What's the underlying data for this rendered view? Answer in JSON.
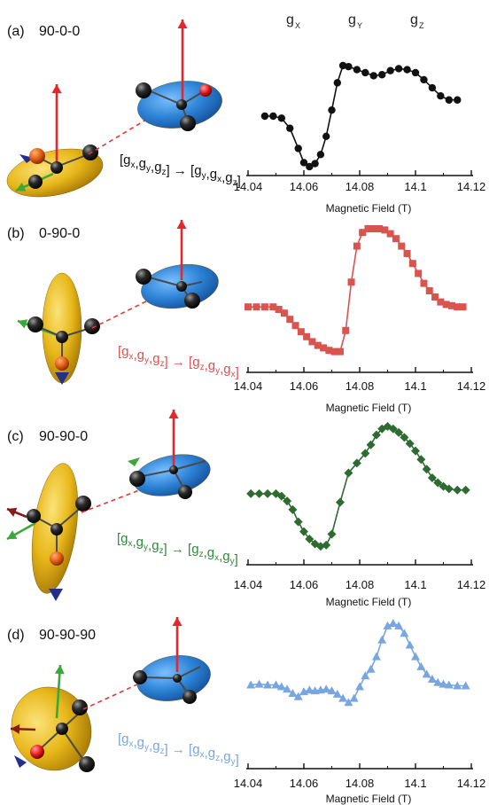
{
  "header": {
    "g_letter": "g",
    "g_subs": [
      "X",
      "Y",
      "Z"
    ]
  },
  "panels": [
    {
      "label": "(a)",
      "name": "90-0-0",
      "name_color": "#111111",
      "mapping_from": "[gx,gy,gz]",
      "mapping_to": "[gy,gx,gz]",
      "map_from_subs": [
        "x",
        "y",
        "z"
      ],
      "map_to_subs": [
        "y",
        "x",
        "z"
      ],
      "mapping_color": "#111111",
      "axis_label": "Magnetic Field (T)",
      "ticks": [
        "14.04",
        "14.06",
        "14.08",
        "14.1",
        "14.12"
      ]
    },
    {
      "label": "(b)",
      "name": "0-90-0",
      "name_color": "#d9534f",
      "mapping_from": "[gx,gy,gz]",
      "mapping_to": "[gz,gy,gx]",
      "map_from_subs": [
        "x",
        "y",
        "z"
      ],
      "map_to_subs": [
        "z",
        "y",
        "x"
      ],
      "mapping_color": "#d9534f",
      "axis_label": "Magnetic Field (T)",
      "ticks": [
        "14.04",
        "14.06",
        "14.08",
        "14.1",
        "14.12"
      ]
    },
    {
      "label": "(c)",
      "name": "90-90-0",
      "name_color": "#2e8b3a",
      "mapping_from": "[gx,gy,gz]",
      "mapping_to": "[gz,gx,gy]",
      "map_from_subs": [
        "x",
        "y",
        "z"
      ],
      "map_to_subs": [
        "z",
        "x",
        "y"
      ],
      "mapping_color": "#2e8b3a",
      "axis_label": "Magnetic Field (T)",
      "ticks": [
        "14.04",
        "14.06",
        "14.08",
        "14.1",
        "14.12"
      ]
    },
    {
      "label": "(d)",
      "name": "90-90-90",
      "name_color": "#5b8fd6",
      "mapping_from": "[gx,gy,gz]",
      "mapping_to": "[gx,gz,gy]",
      "map_from_subs": [
        "x",
        "y",
        "z"
      ],
      "map_to_subs": [
        "x",
        "z",
        "y"
      ],
      "mapping_color": "#7aa6e0",
      "axis_label": "Magnetic Field (T)",
      "ticks": [
        "14.04",
        "14.06",
        "14.08",
        "14.1",
        "14.12"
      ]
    }
  ],
  "chart_data": [
    {
      "type": "line",
      "xlabel": "Magnetic Field (T)",
      "xlim": [
        14.04,
        14.12
      ],
      "marker": "circle",
      "color": "#111111",
      "x": [
        14.046,
        14.049,
        14.052,
        14.055,
        14.058,
        14.06,
        14.062,
        14.064,
        14.066,
        14.068,
        14.07,
        14.072,
        14.074,
        14.076,
        14.079,
        14.082,
        14.085,
        14.088,
        14.091,
        14.094,
        14.097,
        14.1,
        14.103,
        14.106,
        14.109,
        14.112,
        14.115
      ],
      "y": [
        0.5,
        0.5,
        0.48,
        0.38,
        0.18,
        0.04,
        0.0,
        0.03,
        0.12,
        0.3,
        0.56,
        0.83,
        1.0,
        0.99,
        0.96,
        0.93,
        0.9,
        0.91,
        0.95,
        0.97,
        0.96,
        0.93,
        0.86,
        0.78,
        0.7,
        0.66,
        0.66
      ]
    },
    {
      "type": "line",
      "xlabel": "Magnetic Field (T)",
      "xlim": [
        14.04,
        14.12
      ],
      "marker": "square",
      "color": "#d9534f",
      "x": [
        14.04,
        14.043,
        14.046,
        14.049,
        14.051,
        14.053,
        14.055,
        14.057,
        14.059,
        14.061,
        14.063,
        14.065,
        14.067,
        14.069,
        14.071,
        14.073,
        14.075,
        14.077,
        14.079,
        14.081,
        14.083,
        14.085,
        14.087,
        14.089,
        14.091,
        14.093,
        14.095,
        14.097,
        14.099,
        14.101,
        14.103,
        14.105,
        14.107,
        14.109,
        14.111,
        14.113,
        14.115,
        14.117
      ],
      "y": [
        0.37,
        0.37,
        0.37,
        0.37,
        0.35,
        0.32,
        0.27,
        0.22,
        0.17,
        0.13,
        0.09,
        0.06,
        0.04,
        0.02,
        0.01,
        0.01,
        0.18,
        0.57,
        0.86,
        0.97,
        1.0,
        1.0,
        1.0,
        0.99,
        0.96,
        0.92,
        0.86,
        0.8,
        0.72,
        0.64,
        0.56,
        0.5,
        0.45,
        0.41,
        0.39,
        0.38,
        0.37,
        0.37
      ]
    },
    {
      "type": "line",
      "xlabel": "Magnetic Field (T)",
      "xlim": [
        14.04,
        14.12
      ],
      "marker": "diamond",
      "color": "#2e6b30",
      "x": [
        14.041,
        14.044,
        14.047,
        14.05,
        14.052,
        14.054,
        14.056,
        14.058,
        14.06,
        14.062,
        14.064,
        14.066,
        14.068,
        14.07,
        14.073,
        14.076,
        14.079,
        14.082,
        14.084,
        14.086,
        14.088,
        14.09,
        14.092,
        14.094,
        14.096,
        14.098,
        14.1,
        14.102,
        14.104,
        14.106,
        14.108,
        14.11,
        14.112,
        14.115,
        14.118
      ],
      "y": [
        0.45,
        0.45,
        0.45,
        0.45,
        0.43,
        0.39,
        0.32,
        0.22,
        0.14,
        0.08,
        0.04,
        0.02,
        0.03,
        0.12,
        0.38,
        0.62,
        0.7,
        0.78,
        0.85,
        0.93,
        0.98,
        1.0,
        0.98,
        0.95,
        0.91,
        0.86,
        0.8,
        0.73,
        0.65,
        0.58,
        0.54,
        0.51,
        0.49,
        0.48,
        0.48
      ]
    },
    {
      "type": "line",
      "xlabel": "Magnetic Field (T)",
      "xlim": [
        14.04,
        14.12
      ],
      "marker": "triangle",
      "color": "#7aa6e0",
      "x": [
        14.041,
        14.044,
        14.047,
        14.05,
        14.052,
        14.054,
        14.056,
        14.058,
        14.06,
        14.062,
        14.064,
        14.066,
        14.068,
        14.07,
        14.072,
        14.074,
        14.076,
        14.078,
        14.08,
        14.082,
        14.084,
        14.086,
        14.088,
        14.09,
        14.092,
        14.094,
        14.096,
        14.098,
        14.1,
        14.102,
        14.104,
        14.106,
        14.108,
        14.11,
        14.112,
        14.115,
        14.118
      ],
      "y": [
        0.26,
        0.27,
        0.26,
        0.26,
        0.24,
        0.21,
        0.16,
        0.12,
        0.18,
        0.2,
        0.19,
        0.2,
        0.21,
        0.19,
        0.15,
        0.1,
        0.05,
        0.1,
        0.24,
        0.37,
        0.45,
        0.6,
        0.8,
        0.97,
        1.0,
        0.97,
        0.88,
        0.74,
        0.6,
        0.48,
        0.39,
        0.33,
        0.29,
        0.27,
        0.26,
        0.25,
        0.25
      ]
    }
  ],
  "colors": {
    "yellow_ellipsoid": "#e8b81a",
    "blue_ellipsoid": "#2d83d6",
    "arrow_red": "#e0282d",
    "arrow_green": "#3aa83a",
    "arrow_blue": "#232f8a",
    "dashed_link": "#e03a3a",
    "ball": "#1b1b1b"
  }
}
